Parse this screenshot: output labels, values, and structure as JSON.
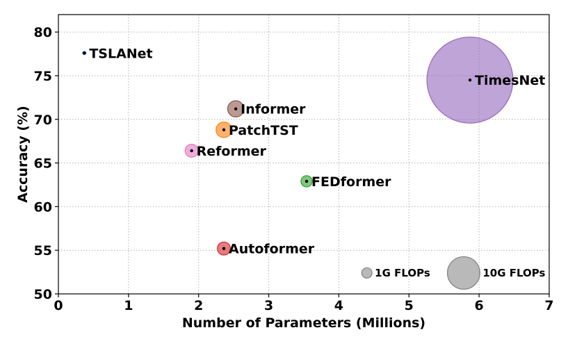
{
  "chart_data": {
    "type": "scatter",
    "title": "",
    "xlabel": "Number of Parameters (Millions)",
    "ylabel": "Accuracy (%)",
    "xlim": [
      0,
      7
    ],
    "ylim": [
      50,
      82
    ],
    "xticks": [
      0,
      1,
      2,
      3,
      4,
      5,
      6,
      7
    ],
    "yticks": [
      50,
      55,
      60,
      65,
      70,
      75,
      80
    ],
    "grid": true,
    "grid_style": "dotted",
    "size_encoding": "FLOPs",
    "points": [
      {
        "name": "TSLANet",
        "x": 0.37,
        "y": 77.6,
        "flops_g": 0.1,
        "color": "#1f77b4"
      },
      {
        "name": "TimesNet",
        "x": 5.87,
        "y": 74.5,
        "flops_g": 70,
        "color": "#9467bd"
      },
      {
        "name": "Informer",
        "x": 2.53,
        "y": 71.2,
        "flops_g": 2.5,
        "color": "#8c564b"
      },
      {
        "name": "PatchTST",
        "x": 2.36,
        "y": 68.8,
        "flops_g": 2.3,
        "color": "#ff7f0e"
      },
      {
        "name": "Reformer",
        "x": 1.9,
        "y": 66.4,
        "flops_g": 1.6,
        "color": "#e377c2"
      },
      {
        "name": "FEDformer",
        "x": 3.54,
        "y": 62.9,
        "flops_g": 1.2,
        "color": "#2ca02c"
      },
      {
        "name": "Autoformer",
        "x": 2.36,
        "y": 55.2,
        "flops_g": 1.6,
        "color": "#d62728"
      }
    ],
    "size_reference": [
      {
        "label": "1G FLOPs",
        "x": 4.4,
        "y": 52.4,
        "flops_g": 1,
        "color": "#7f7f7f"
      },
      {
        "label": "10G FLOPs",
        "x": 5.78,
        "y": 52.4,
        "flops_g": 10,
        "color": "#7f7f7f"
      }
    ]
  }
}
